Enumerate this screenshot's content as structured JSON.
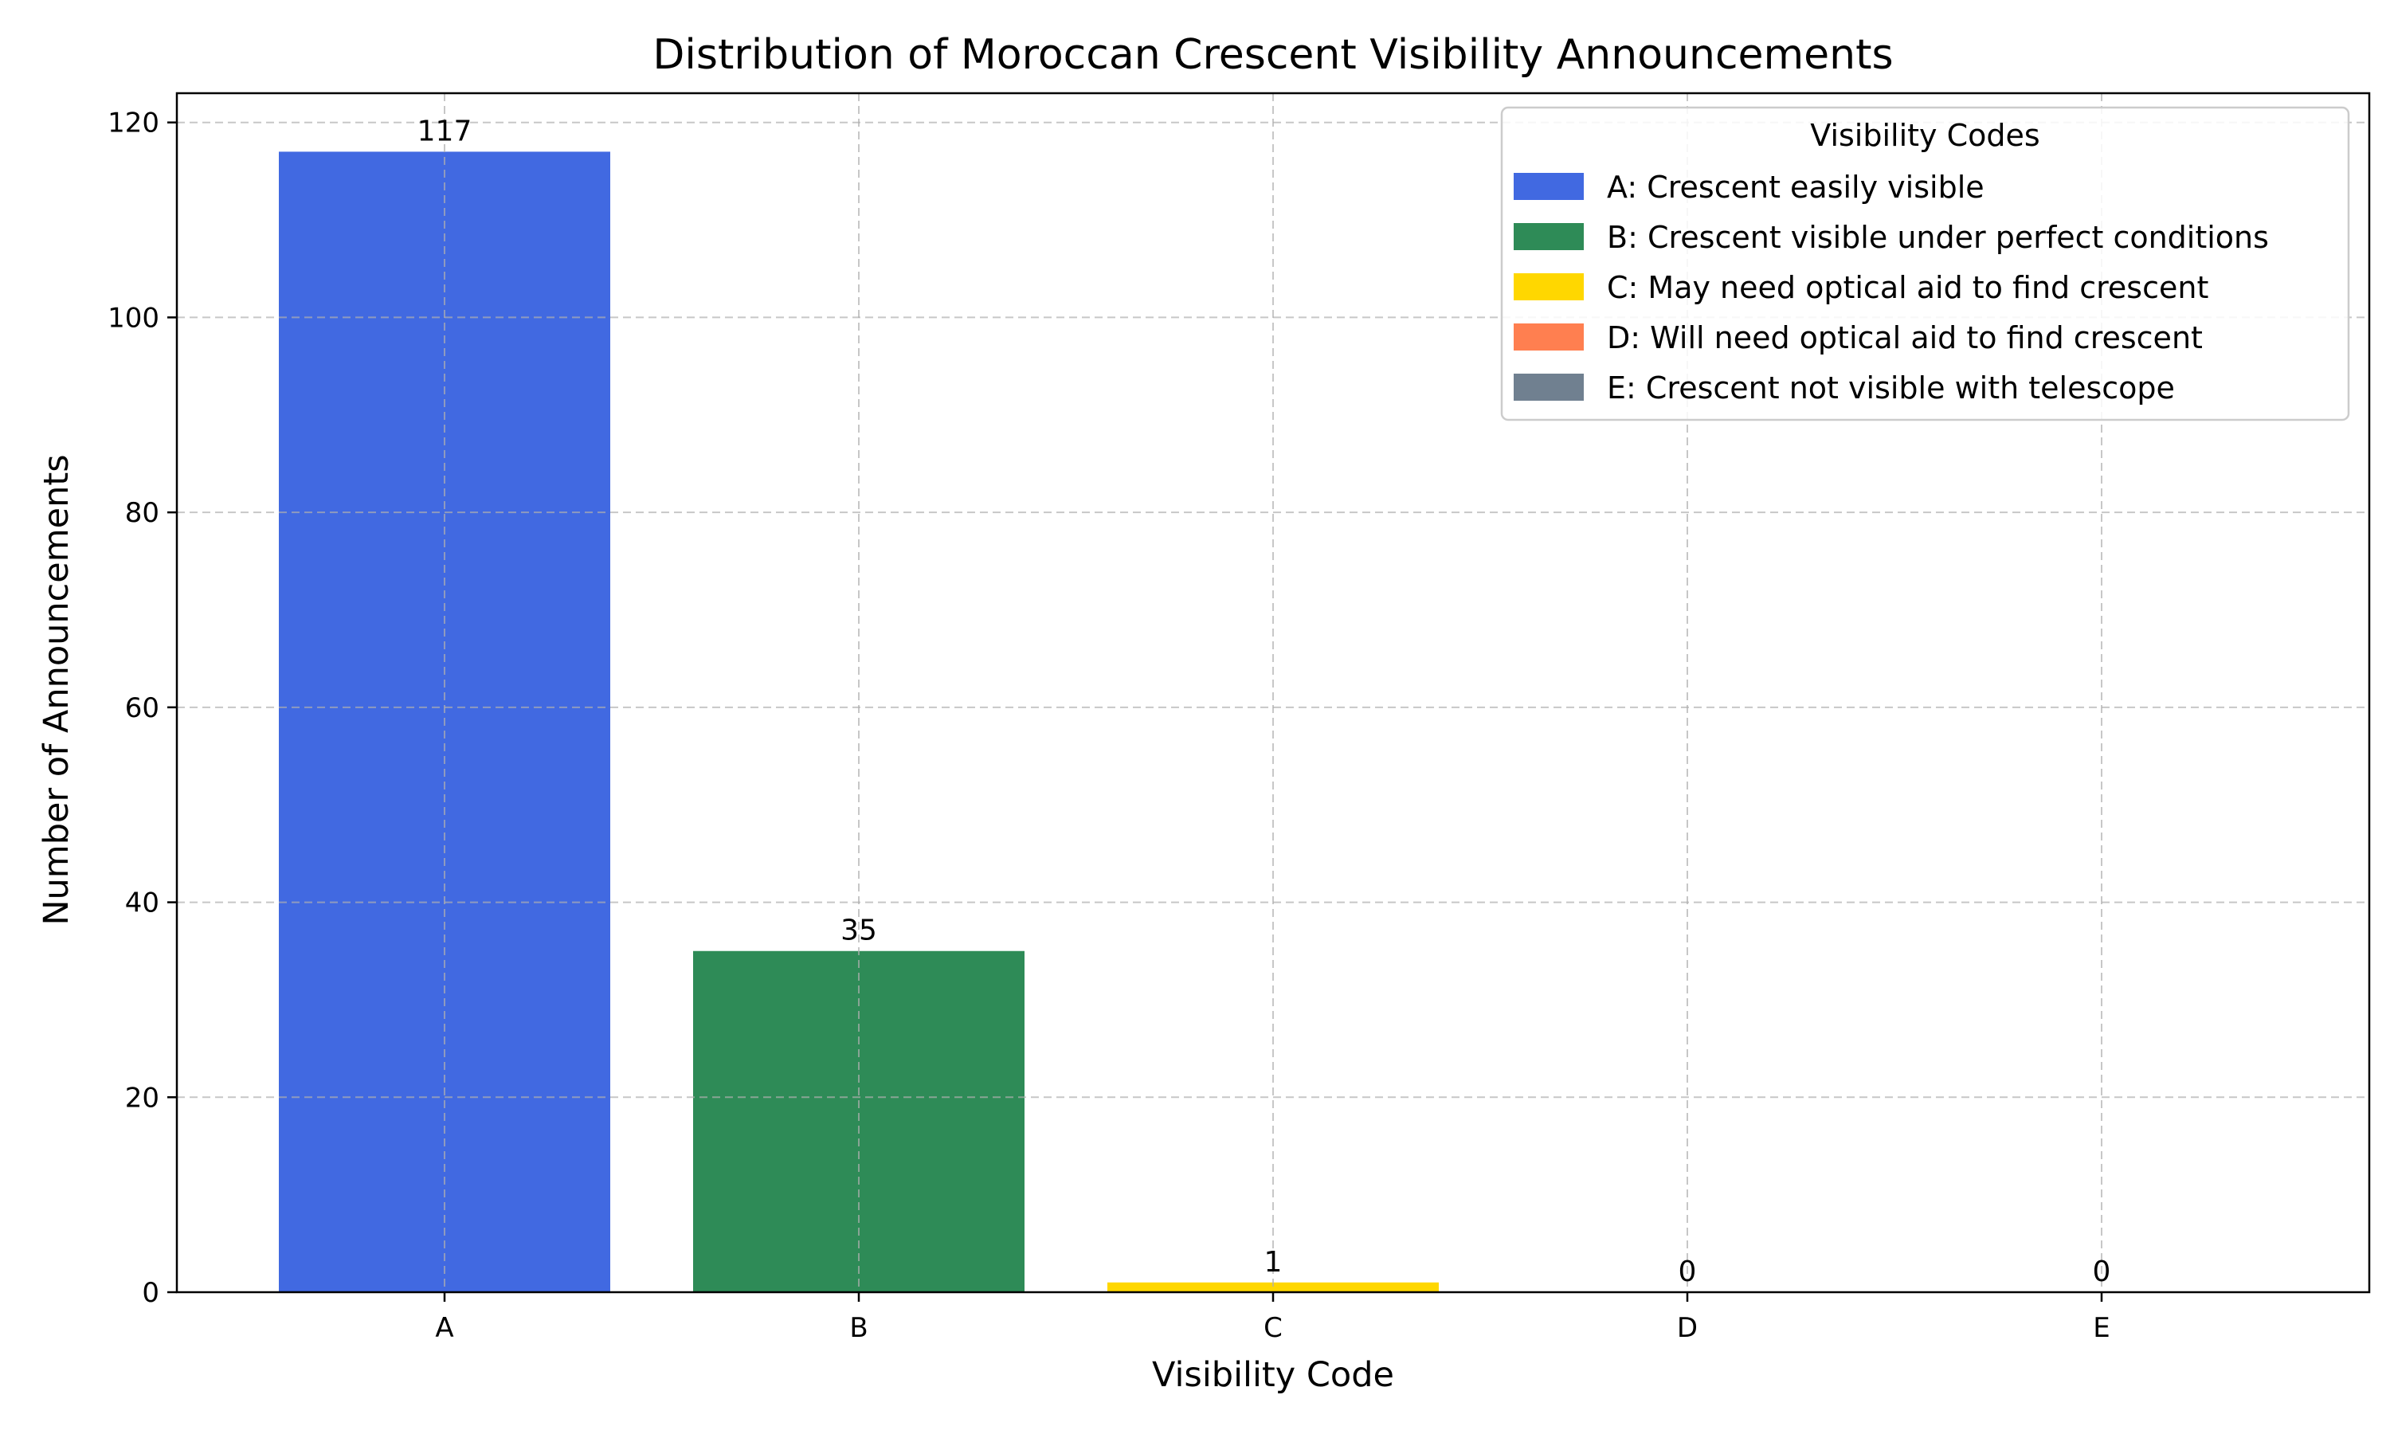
{
  "chart_data": {
    "type": "bar",
    "title": "Distribution of Moroccan Crescent Visibility Announcements",
    "xlabel": "Visibility Code",
    "ylabel": "Number of Announcements",
    "categories": [
      "A",
      "B",
      "C",
      "D",
      "E"
    ],
    "values": [
      117,
      35,
      1,
      0,
      0
    ],
    "colors": [
      "#4169E1",
      "#2E8B57",
      "#FFD700",
      "#FF7F50",
      "#708090"
    ],
    "ylim": [
      0,
      123
    ],
    "yticks": [
      0,
      20,
      40,
      60,
      80,
      100,
      120
    ],
    "grid": true,
    "legend": {
      "title": "Visibility Codes",
      "placement": "top-right",
      "entries": [
        "A: Crescent easily visible",
        "B: Crescent visible under perfect conditions",
        "C: May need optical aid to find crescent",
        "D: Will need optical aid to find crescent",
        "E: Crescent not visible with telescope"
      ]
    }
  }
}
